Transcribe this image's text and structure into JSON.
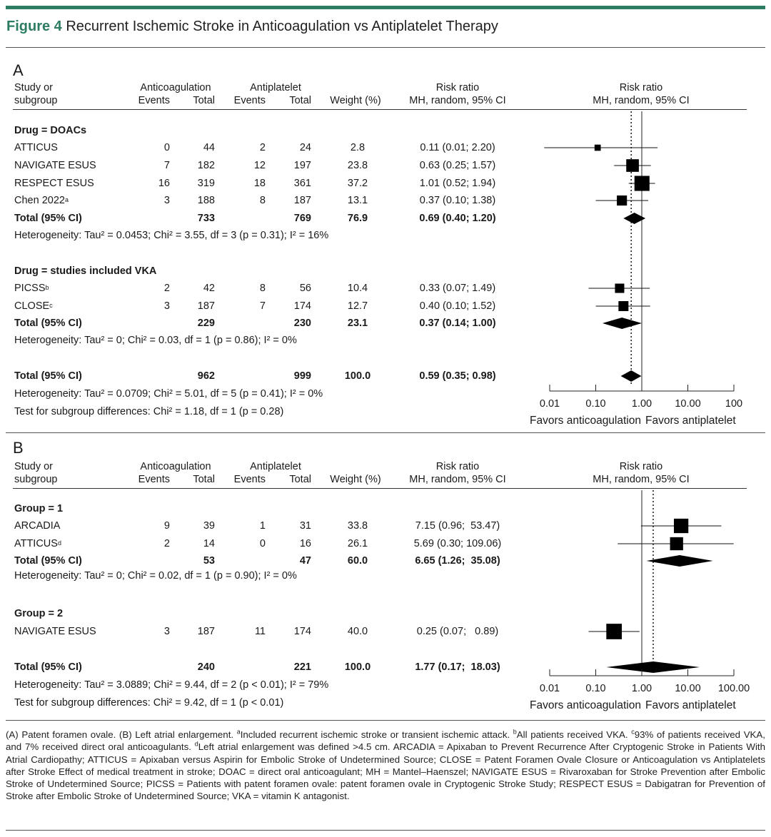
{
  "figure": {
    "label": "Figure 4",
    "title": "Recurrent Ischemic Stroke in Anticoagulation vs Antiplatelet Therapy"
  },
  "headers": {
    "study_line1": "Study or",
    "study_line2": "subgroup",
    "anticoag": "Anticoagulation",
    "antiplatelet": "Antiplatelet",
    "events": "Events",
    "total": "Total",
    "weight": "Weight (%)",
    "rr_line1": "Risk ratio",
    "rr_line2": "MH, random, 95% CI",
    "plot_line1": "Risk ratio",
    "plot_line2": "MH, random, 95% CI"
  },
  "panel_a": {
    "letter": "A",
    "groups": [
      {
        "title": "Drug = DOACs",
        "rows": [
          {
            "study": "ATTICUS",
            "sup": "",
            "ae": "0",
            "at": "44",
            "pe": "2",
            "pt": "24",
            "w": "2.8",
            "rr": "0.11 (0.01; 2.20)"
          },
          {
            "study": "NAVIGATE ESUS",
            "sup": "",
            "ae": "7",
            "at": "182",
            "pe": "12",
            "pt": "197",
            "w": "23.8",
            "rr": "0.63 (0.25; 1.57)"
          },
          {
            "study": "RESPECT ESUS",
            "sup": "",
            "ae": "16",
            "at": "319",
            "pe": "18",
            "pt": "361",
            "w": "37.2",
            "rr": "1.01 (0.52; 1.94)"
          },
          {
            "study": "Chen 2022",
            "sup": "a",
            "ae": "3",
            "at": "188",
            "pe": "8",
            "pt": "187",
            "w": "13.1",
            "rr": "0.37 (0.10; 1.38)"
          }
        ],
        "total": {
          "label": "Total (95% CI)",
          "at": "733",
          "pt": "769",
          "w": "76.9",
          "rr": "0.69 (0.40; 1.20)"
        },
        "heterogeneity": "Heterogeneity: Tau² = 0.0453; Chi² = 3.55, df = 3 (p = 0.31); I² = 16%"
      },
      {
        "title": "Drug = studies included VKA",
        "rows": [
          {
            "study": "PICSS",
            "sup": "b",
            "ae": "2",
            "at": "42",
            "pe": "8",
            "pt": "56",
            "w": "10.4",
            "rr": "0.33 (0.07; 1.49)"
          },
          {
            "study": "CLOSE",
            "sup": "c",
            "ae": "3",
            "at": "187",
            "pe": "7",
            "pt": "174",
            "w": "12.7",
            "rr": "0.40 (0.10; 1.52)"
          }
        ],
        "total": {
          "label": "Total (95% CI)",
          "at": "229",
          "pt": "230",
          "w": "23.1",
          "rr": "0.37 (0.14; 1.00)"
        },
        "heterogeneity": "Heterogeneity: Tau² = 0; Chi² = 0.03, df = 1 (p = 0.86); I² = 0%"
      }
    ],
    "overall": {
      "label": "Total (95% CI)",
      "at": "962",
      "pt": "999",
      "w": "100.0",
      "rr": "0.59 (0.35; 0.98)"
    },
    "overall_heterogeneity": "Heterogeneity: Tau² = 0.0709; Chi² = 5.01, df = 5 (p = 0.41); I² = 0%",
    "subgroup_test": "Test for subgroup differences: Chi² = 1.18, df = 1 (p = 0.28)",
    "axis_ticks": [
      "0.01",
      "0.10",
      "1.00",
      "10.00",
      "100"
    ],
    "favors_left": "Favors anticoagulation",
    "favors_right": "Favors antiplatelet"
  },
  "panel_b": {
    "letter": "B",
    "groups": [
      {
        "title": "Group = 1",
        "rows": [
          {
            "study": "ARCADIA",
            "sup": "",
            "ae": "9",
            "at": "39",
            "pe": "1",
            "pt": "31",
            "w": "33.8",
            "rr": "7.15 (0.96;  53.47)"
          },
          {
            "study": "ATTICUS",
            "sup": "d",
            "ae": "2",
            "at": "14",
            "pe": "0",
            "pt": "16",
            "w": "26.1",
            "rr": "5.69 (0.30; 109.06)"
          }
        ],
        "total": {
          "label": "Total (95% CI)",
          "at": "53",
          "pt": "47",
          "w": "60.0",
          "rr": "6.65 (1.26;  35.08)"
        },
        "heterogeneity": "Heterogeneity: Tau² = 0; Chi² = 0.02, df = 1 (p = 0.90); I² = 0%"
      },
      {
        "title": "Group = 2",
        "rows": [
          {
            "study": "NAVIGATE ESUS",
            "sup": "",
            "ae": "3",
            "at": "187",
            "pe": "11",
            "pt": "174",
            "w": "40.0",
            "rr": "0.25 (0.07;   0.89)"
          }
        ]
      }
    ],
    "overall": {
      "label": "Total (95% CI)",
      "at": "240",
      "pt": "221",
      "w": "100.0",
      "rr": "1.77 (0.17;  18.03)"
    },
    "overall_heterogeneity": "Heterogeneity: Tau² = 3.0889; Chi² = 9.44, df = 2 (p < 0.01); I² = 79%",
    "subgroup_test": "Test for subgroup differences: Chi² = 9.42, df = 1 (p < 0.01)",
    "axis_ticks": [
      "0.01",
      "0.10",
      "1.00",
      "10.00",
      "100.00"
    ],
    "favors_left": "Favors anticoagulation",
    "favors_right": "Favors antiplatelet"
  },
  "chart_data": [
    {
      "type": "scatter",
      "name": "A",
      "scale": "log",
      "xlim": [
        0.01,
        100
      ],
      "null_line": 1.0,
      "pooled_line": 0.59,
      "studies": [
        {
          "study": "ATTICUS",
          "rr": 0.11,
          "lo": 0.01,
          "hi": 2.2,
          "weight": 2.8
        },
        {
          "study": "NAVIGATE ESUS",
          "rr": 0.63,
          "lo": 0.25,
          "hi": 1.57,
          "weight": 23.8
        },
        {
          "study": "RESPECT ESUS",
          "rr": 1.01,
          "lo": 0.52,
          "hi": 1.94,
          "weight": 37.2
        },
        {
          "study": "Chen 2022",
          "rr": 0.37,
          "lo": 0.1,
          "hi": 1.38,
          "weight": 13.1
        },
        {
          "study": "PICSS",
          "rr": 0.33,
          "lo": 0.07,
          "hi": 1.49,
          "weight": 10.4
        },
        {
          "study": "CLOSE",
          "rr": 0.4,
          "lo": 0.1,
          "hi": 1.52,
          "weight": 12.7
        }
      ],
      "pooled": [
        {
          "label": "Total DOACs",
          "rr": 0.69,
          "lo": 0.4,
          "hi": 1.2
        },
        {
          "label": "Total VKA",
          "rr": 0.37,
          "lo": 0.14,
          "hi": 1.0
        },
        {
          "label": "Total",
          "rr": 0.59,
          "lo": 0.35,
          "hi": 0.98
        }
      ]
    },
    {
      "type": "scatter",
      "name": "B",
      "scale": "log",
      "xlim": [
        0.01,
        100
      ],
      "null_line": 1.0,
      "pooled_line": 1.77,
      "studies": [
        {
          "study": "ARCADIA",
          "rr": 7.15,
          "lo": 0.96,
          "hi": 53.47,
          "weight": 33.8
        },
        {
          "study": "ATTICUS",
          "rr": 5.69,
          "lo": 0.3,
          "hi": 109.06,
          "weight": 26.1
        },
        {
          "study": "NAVIGATE ESUS",
          "rr": 0.25,
          "lo": 0.07,
          "hi": 0.89,
          "weight": 40.0
        }
      ],
      "pooled": [
        {
          "label": "Total Group 1",
          "rr": 6.65,
          "lo": 1.26,
          "hi": 35.08
        },
        {
          "label": "Total",
          "rr": 1.77,
          "lo": 0.17,
          "hi": 18.03
        }
      ]
    }
  ],
  "footnote_parts": {
    "p1": "(A) Patent foramen ovale. (B) Left atrial enlargement. ",
    "s1": "a",
    "p2": "Included recurrent ischemic stroke or transient ischemic attack. ",
    "s2": "b",
    "p3": "All patients received VKA. ",
    "s3": "c",
    "p4": "93% of patients received VKA, and 7% received direct oral anticoagulants. ",
    "s4": "d",
    "p5": "Left atrial enlargement was defined >4.5 cm. ARCADIA = Apixaban to Prevent Recurrence After Cryptogenic Stroke in Patients With Atrial Cardiopathy; ATTICUS = Apixaban versus Aspirin for Embolic Stroke of Undetermined Source; CLOSE = Patent Foramen Ovale Closure or Anticoagulation vs Antiplatelets after Stroke Effect of medical treatment in stroke; DOAC = direct oral anticoagulant; MH = Mantel–Haenszel; NAVIGATE ESUS = Rivaroxaban for Stroke Prevention after Embolic Stroke of Undetermined Source; PICSS = Patients with patent foramen ovale: patent foramen ovale in Cryptogenic Stroke Study; RESPECT ESUS = Dabigatran for Prevention of Stroke after Embolic Stroke of Undetermined Source; VKA = vitamin K antagonist."
  }
}
